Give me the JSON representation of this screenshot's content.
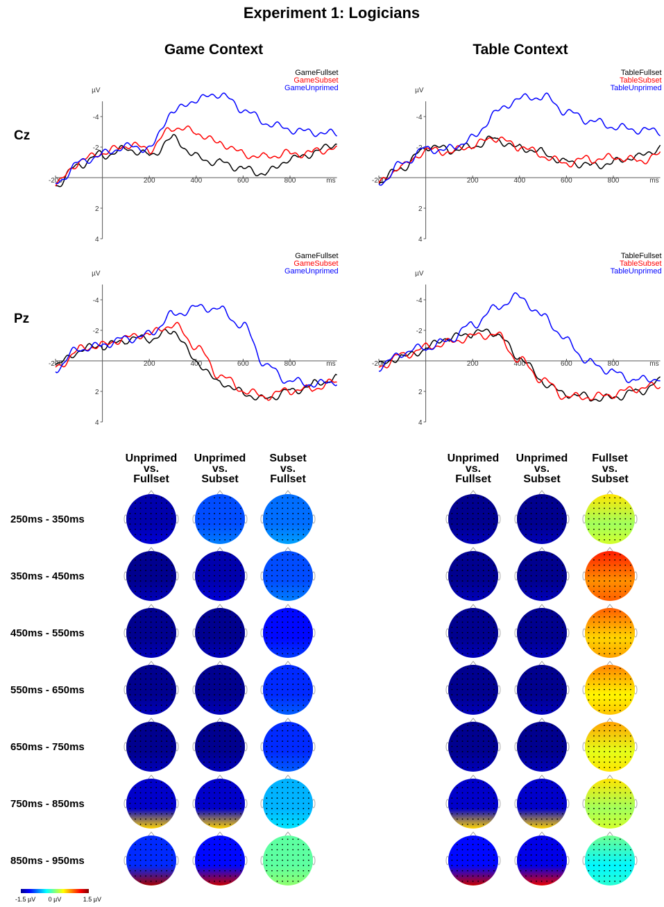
{
  "title": "Experiment 1: Logicians",
  "contexts": [
    "Game Context",
    "Table Context"
  ],
  "chart_data": {
    "type": "line",
    "title": "Experiment 1: Logicians",
    "xlabel": "ms",
    "ylabel": "µV",
    "xlim": [
      -200,
      1000
    ],
    "ylim": [
      4,
      -5
    ],
    "y_inverted": true,
    "x_ticks": [
      "-200",
      "200",
      "400",
      "600",
      "800"
    ],
    "y_ticks": [
      "-4",
      "-2",
      "2",
      "4"
    ],
    "x_unit": "ms",
    "y_unit": "µV",
    "panels": [
      {
        "electrode": "Cz",
        "context": "Game Context",
        "x": [
          -200,
          -100,
          0,
          100,
          200,
          300,
          400,
          500,
          600,
          700,
          800,
          900,
          1000
        ],
        "series": [
          {
            "name": "GameFullset",
            "color": "#000000",
            "values": [
              0.5,
              -0.8,
              -1.5,
              -1.9,
              -1.5,
              -2.6,
              -1.4,
              -1.0,
              -0.6,
              -0.3,
              -1.2,
              -1.6,
              -2.2
            ]
          },
          {
            "name": "GameSubset",
            "color": "#ff0000",
            "values": [
              0.4,
              -1.0,
              -1.6,
              -2.1,
              -1.9,
              -3.3,
              -3.0,
              -2.3,
              -1.6,
              -1.4,
              -1.6,
              -1.7,
              -1.9
            ]
          },
          {
            "name": "GameUnprimed",
            "color": "#0000ff",
            "values": [
              0.4,
              -1.0,
              -1.5,
              -2.0,
              -1.9,
              -4.3,
              -5.1,
              -5.5,
              -4.5,
              -3.6,
              -3.2,
              -3.0,
              -2.9
            ]
          }
        ]
      },
      {
        "electrode": "Cz",
        "context": "Table Context",
        "x": [
          -200,
          -100,
          0,
          100,
          200,
          300,
          400,
          500,
          600,
          700,
          800,
          900,
          1000
        ],
        "series": [
          {
            "name": "TableFullset",
            "color": "#000000",
            "values": [
              0.3,
              -0.7,
              -2.0,
              -1.8,
              -2.0,
              -2.5,
              -1.9,
              -1.6,
              -1.0,
              -0.8,
              -1.0,
              -1.4,
              -2.0
            ]
          },
          {
            "name": "TableSubset",
            "color": "#ff0000",
            "values": [
              0.4,
              -0.8,
              -1.8,
              -1.7,
              -2.1,
              -2.6,
              -2.0,
              -1.4,
              -0.9,
              -1.2,
              -1.3,
              -1.1,
              -1.5
            ]
          },
          {
            "name": "TableUnprimed",
            "color": "#0000ff",
            "values": [
              0.4,
              -0.9,
              -1.9,
              -1.9,
              -2.6,
              -4.3,
              -5.2,
              -5.3,
              -4.3,
              -3.7,
              -3.3,
              -3.1,
              -3.0
            ]
          }
        ]
      },
      {
        "electrode": "Pz",
        "context": "Game Context",
        "x": [
          -200,
          -100,
          0,
          100,
          200,
          300,
          400,
          500,
          600,
          700,
          800,
          900,
          1000
        ],
        "series": [
          {
            "name": "GameFullset",
            "color": "#000000",
            "values": [
              0.3,
              -0.6,
              -1.0,
              -1.4,
              -1.5,
              -2.0,
              0.0,
              1.4,
              2.1,
              2.5,
              2.0,
              1.6,
              1.2
            ]
          },
          {
            "name": "GameSubset",
            "color": "#ff0000",
            "values": [
              0.5,
              -0.7,
              -1.0,
              -1.5,
              -1.8,
              -2.4,
              -1.0,
              0.9,
              1.9,
              2.3,
              1.9,
              1.8,
              1.4
            ]
          },
          {
            "name": "GameUnprimed",
            "color": "#0000ff",
            "values": [
              0.5,
              -0.8,
              -1.0,
              -1.4,
              -1.7,
              -3.0,
              -3.5,
              -3.4,
              -2.3,
              0.3,
              1.3,
              1.5,
              1.3
            ]
          }
        ]
      },
      {
        "electrode": "Pz",
        "context": "Table Context",
        "x": [
          -200,
          -100,
          0,
          100,
          200,
          300,
          400,
          500,
          600,
          700,
          800,
          900,
          1000
        ],
        "series": [
          {
            "name": "TableFullset",
            "color": "#000000",
            "values": [
              0.3,
              -0.3,
              -0.8,
              -1.5,
              -1.8,
              -1.8,
              -0.2,
              1.4,
              2.2,
              2.4,
              2.4,
              2.0,
              1.3
            ]
          },
          {
            "name": "TableSubset",
            "color": "#ff0000",
            "values": [
              0.4,
              -0.4,
              -0.9,
              -1.2,
              -1.6,
              -1.7,
              0.0,
              1.3,
              2.4,
              2.4,
              2.2,
              1.8,
              1.6
            ]
          },
          {
            "name": "TableUnprimed",
            "color": "#0000ff",
            "values": [
              0.4,
              -0.5,
              -0.9,
              -1.4,
              -2.4,
              -3.5,
              -4.2,
              -2.9,
              -1.3,
              0.2,
              0.8,
              1.3,
              1.2
            ]
          }
        ]
      }
    ]
  },
  "topomaps": {
    "game_columns": [
      "Unprimed\nvs.\nFullset",
      "Unprimed\nvs.\nSubset",
      "Subset\nvs.\nFullset"
    ],
    "table_columns": [
      "Unprimed\nvs.\nFullset",
      "Unprimed\nvs.\nSubset",
      "Fullset\nvs.\nSubset"
    ],
    "time_windows": [
      "250ms - 350ms",
      "350ms - 450ms",
      "450ms - 550ms",
      "550ms - 650ms",
      "650ms - 750ms",
      "750ms - 850ms",
      "850ms - 950ms"
    ],
    "values_uV": [
      [
        -1.4,
        -0.9,
        -0.8,
        -1.5,
        -1.5,
        0.1
      ],
      [
        -1.5,
        -1.4,
        -0.9,
        -1.5,
        -1.5,
        0.7
      ],
      [
        -1.5,
        -1.5,
        -1.1,
        -1.5,
        -1.5,
        0.5
      ],
      [
        -1.5,
        -1.5,
        -1.0,
        -1.5,
        -1.5,
        0.4
      ],
      [
        -1.5,
        -1.5,
        -1.0,
        -1.5,
        -1.5,
        0.3
      ],
      [
        -1.3,
        -1.3,
        -0.6,
        -1.3,
        -1.3,
        0.1
      ],
      [
        -1.0,
        -1.1,
        -0.1,
        -1.1,
        -1.2,
        -0.4
      ]
    ],
    "colorbar": {
      "min_label": "-1.5 µV",
      "mid_label": "0 µV",
      "max_label": "1.5 µV",
      "min": -1.5,
      "max": 1.5
    }
  }
}
